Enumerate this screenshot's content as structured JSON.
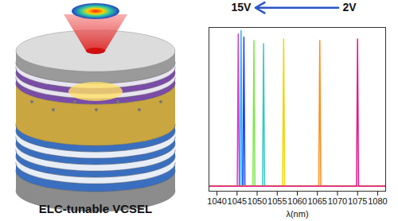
{
  "chart_data": {
    "type": "line",
    "xlabel": "λ(nm)",
    "xlim": [
      1038,
      1082
    ],
    "xticks": [
      1040,
      1045,
      1050,
      1055,
      1060,
      1065,
      1070,
      1075,
      1080
    ],
    "ylim": [
      0,
      1
    ],
    "yticks": [],
    "tick_labels": "x",
    "annotations": [
      {
        "text": "15V",
        "x": 1046,
        "y": 1.12
      },
      {
        "text": "2V",
        "x": 1073,
        "y": 1.12
      }
    ],
    "series": [
      {
        "color": "#d43bd4",
        "x": [
          1038,
          1045.05,
          1045.3,
          1045.55,
          1082
        ],
        "values": [
          0.03,
          0.03,
          0.96,
          0.03,
          0.03
        ]
      },
      {
        "color": "#1fb8ff",
        "x": [
          1038,
          1045.75,
          1046.0,
          1046.25,
          1082
        ],
        "values": [
          0.03,
          0.03,
          0.98,
          0.03,
          0.03
        ]
      },
      {
        "color": "#1a3cff",
        "x": [
          1038,
          1046.45,
          1046.7,
          1046.95,
          1082
        ],
        "values": [
          0.03,
          0.03,
          0.94,
          0.03,
          0.03
        ]
      },
      {
        "color": "#7ee84a",
        "x": [
          1038,
          1048.95,
          1049.2,
          1049.45,
          1082
        ],
        "values": [
          0.03,
          0.03,
          0.92,
          0.03,
          0.03
        ]
      },
      {
        "color": "#33c9c9",
        "x": [
          1038,
          1051.35,
          1051.6,
          1051.85,
          1082
        ],
        "values": [
          0.03,
          0.03,
          0.9,
          0.03,
          0.03
        ]
      },
      {
        "color": "#f2d500",
        "x": [
          1038,
          1056.35,
          1056.6,
          1056.85,
          1082
        ],
        "values": [
          0.03,
          0.03,
          0.93,
          0.03,
          0.03
        ]
      },
      {
        "color": "#ff8c1a",
        "x": [
          1038,
          1065.35,
          1065.6,
          1065.85,
          1082
        ],
        "values": [
          0.03,
          0.03,
          0.92,
          0.03,
          0.03
        ]
      },
      {
        "color": "#e8158c",
        "x": [
          1038,
          1074.75,
          1075.0,
          1075.25,
          1082
        ],
        "values": [
          0.03,
          0.03,
          0.93,
          0.03,
          0.03
        ]
      }
    ]
  },
  "illustration": {
    "label": "ELC-tunable VCSEL"
  }
}
